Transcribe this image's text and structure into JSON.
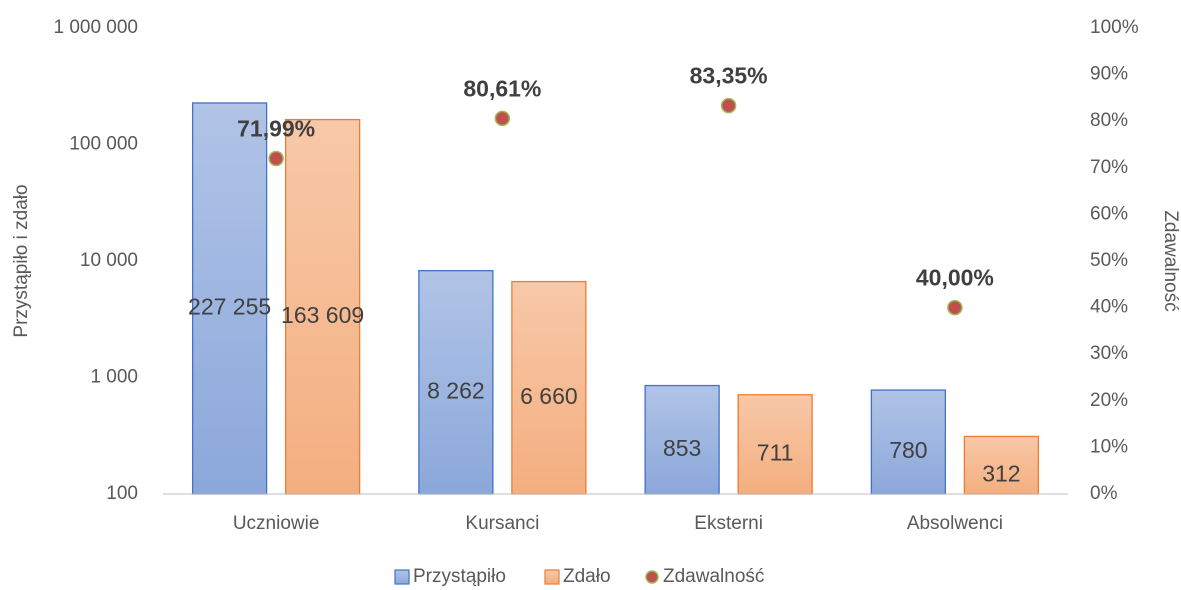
{
  "chart_data": {
    "type": "bar",
    "categories": [
      "Uczniowie",
      "Kursanci",
      "Eksterni",
      "Absolwenci"
    ],
    "series": [
      {
        "name": "Przystąpiło",
        "color": "#4472c4",
        "values": [
          227255,
          8262,
          853,
          780
        ],
        "value_labels": [
          "227 255",
          "8 262",
          "853",
          "780"
        ]
      },
      {
        "name": "Zdało",
        "color": "#ed7d31",
        "values": [
          163609,
          6660,
          711,
          312
        ],
        "value_labels": [
          "163 609",
          "6 660",
          "711",
          "312"
        ]
      },
      {
        "name": "Zdawalność",
        "type": "scatter",
        "axis": "y2",
        "color": "#c0504d",
        "edge_color": "#9bbb59",
        "values": [
          71.99,
          80.61,
          83.35,
          40.0
        ],
        "value_labels": [
          "71,99%",
          "80,61%",
          "83,35%",
          "40,00%"
        ]
      }
    ],
    "ylabel": "Przystąpiło i zdało",
    "y2label": "Zdawalność",
    "yscale": "log",
    "ylim": [
      100,
      1000000
    ],
    "yticks": [
      100,
      {
        "value": 1000,
        "label": "1 000"
      },
      {
        "value": 10000,
        "label": "10 000"
      },
      {
        "value": 100000,
        "label": "100 000"
      },
      {
        "value": 1000000,
        "label": "1 000 000"
      }
    ],
    "y2lim": [
      0,
      100
    ],
    "y2ticks": [
      {
        "value": 0,
        "label": "0%"
      },
      {
        "value": 10,
        "label": "10%"
      },
      {
        "value": 20,
        "label": "20%"
      },
      {
        "value": 30,
        "label": "30%"
      },
      {
        "value": 40,
        "label": "40%"
      },
      {
        "value": 50,
        "label": "50%"
      },
      {
        "value": 60,
        "label": "60%"
      },
      {
        "value": 70,
        "label": "70%"
      },
      {
        "value": 80,
        "label": "80%"
      },
      {
        "value": 90,
        "label": "90%"
      },
      {
        "value": 100,
        "label": "100%"
      }
    ],
    "legend": "bottom",
    "grid": false
  }
}
